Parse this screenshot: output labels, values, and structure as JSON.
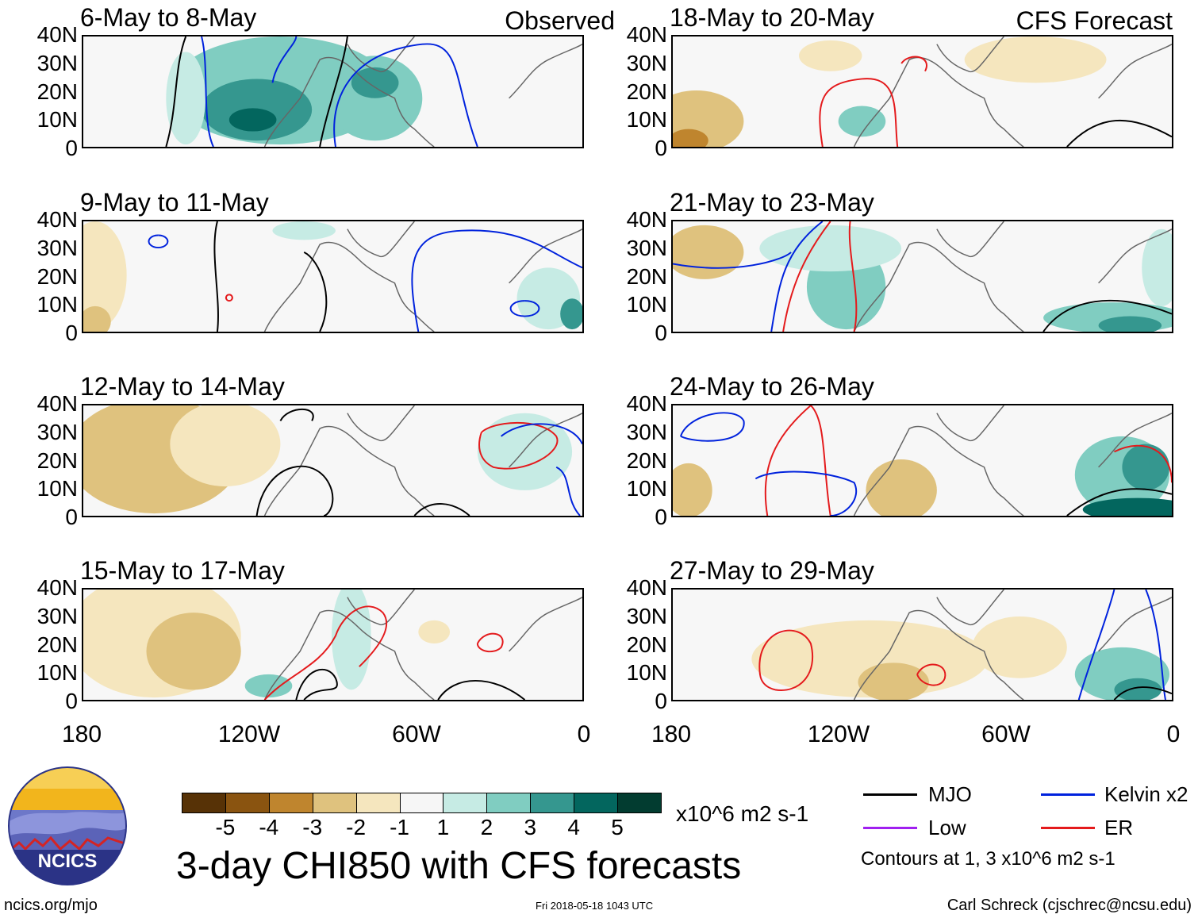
{
  "figure": {
    "title": "3-day CHI850 with CFS forecasts",
    "units": "x10^6 m2 s-1",
    "footer": {
      "site": "ncics.org/mjo",
      "timestamp": "Fri 2018-05-18 1043 UTC",
      "author": "Carl Schreck (cjschrec@ncsu.edu)"
    },
    "logo_text": "NCICS"
  },
  "axes": {
    "lat_labels": [
      "40N",
      "30N",
      "20N",
      "10N",
      "0"
    ],
    "lon_labels": [
      "180",
      "120W",
      "60W",
      "0"
    ]
  },
  "panels": {
    "observed_label": "Observed",
    "forecast_label": "CFS Forecast",
    "left": [
      {
        "title": "6-May to 8-May"
      },
      {
        "title": "9-May to 11-May"
      },
      {
        "title": "12-May to 14-May"
      },
      {
        "title": "15-May to 17-May"
      }
    ],
    "right": [
      {
        "title": "18-May to 20-May"
      },
      {
        "title": "21-May to 23-May"
      },
      {
        "title": "24-May to 26-May"
      },
      {
        "title": "27-May to 29-May"
      }
    ]
  },
  "colorbar": {
    "ticks": [
      "-5",
      "-4",
      "-3",
      "-2",
      "-1",
      "1",
      "2",
      "3",
      "4",
      "5"
    ],
    "colors": [
      "#573206",
      "#8a5410",
      "#bf852e",
      "#dfc27e",
      "#f5e6be",
      "#f6f6f6",
      "#c6ebe4",
      "#80cdc1",
      "#35978f",
      "#03665e",
      "#023c30"
    ]
  },
  "legend": {
    "items": [
      {
        "label": "MJO",
        "color": "#000000"
      },
      {
        "label": "Kelvin x2",
        "color": "#0022dd"
      },
      {
        "label": "Low",
        "color": "#a020f0"
      },
      {
        "label": "ER",
        "color": "#e41a1c"
      }
    ],
    "note": "Contours at 1, 3 x10^6 m2 s-1"
  }
}
